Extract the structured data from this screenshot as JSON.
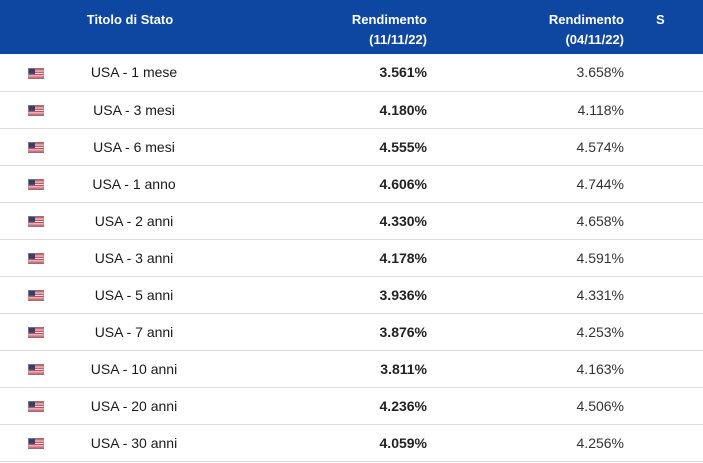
{
  "header": {
    "title_col": "Titolo di Stato",
    "yield1_title": "Rendimento",
    "yield1_date": "(11/11/22)",
    "yield2_title": "Rendimento",
    "yield2_date": "(04/11/22)",
    "extra_col": "S"
  },
  "rows": [
    {
      "flag": "us-flag-icon",
      "name": "USA - 1 mese",
      "yield1": "3.561%",
      "yield2": "3.658%"
    },
    {
      "flag": "us-flag-icon",
      "name": "USA - 3 mesi",
      "yield1": "4.180%",
      "yield2": "4.118%"
    },
    {
      "flag": "us-flag-icon",
      "name": "USA - 6 mesi",
      "yield1": "4.555%",
      "yield2": "4.574%"
    },
    {
      "flag": "us-flag-icon",
      "name": "USA - 1 anno",
      "yield1": "4.606%",
      "yield2": "4.744%"
    },
    {
      "flag": "us-flag-icon",
      "name": "USA - 2 anni",
      "yield1": "4.330%",
      "yield2": "4.658%"
    },
    {
      "flag": "us-flag-icon",
      "name": "USA - 3 anni",
      "yield1": "4.178%",
      "yield2": "4.591%"
    },
    {
      "flag": "us-flag-icon",
      "name": "USA - 5 anni",
      "yield1": "3.936%",
      "yield2": "4.331%"
    },
    {
      "flag": "us-flag-icon",
      "name": "USA - 7 anni",
      "yield1": "3.876%",
      "yield2": "4.253%"
    },
    {
      "flag": "us-flag-icon",
      "name": "USA - 10 anni",
      "yield1": "3.811%",
      "yield2": "4.163%"
    },
    {
      "flag": "us-flag-icon",
      "name": "USA - 20 anni",
      "yield1": "4.236%",
      "yield2": "4.506%"
    },
    {
      "flag": "us-flag-icon",
      "name": "USA - 30 anni",
      "yield1": "4.059%",
      "yield2": "4.256%"
    }
  ],
  "colors": {
    "header_bg": "#0e47a1",
    "header_text": "#ffffff",
    "row_divider": "#dcdcdc"
  }
}
